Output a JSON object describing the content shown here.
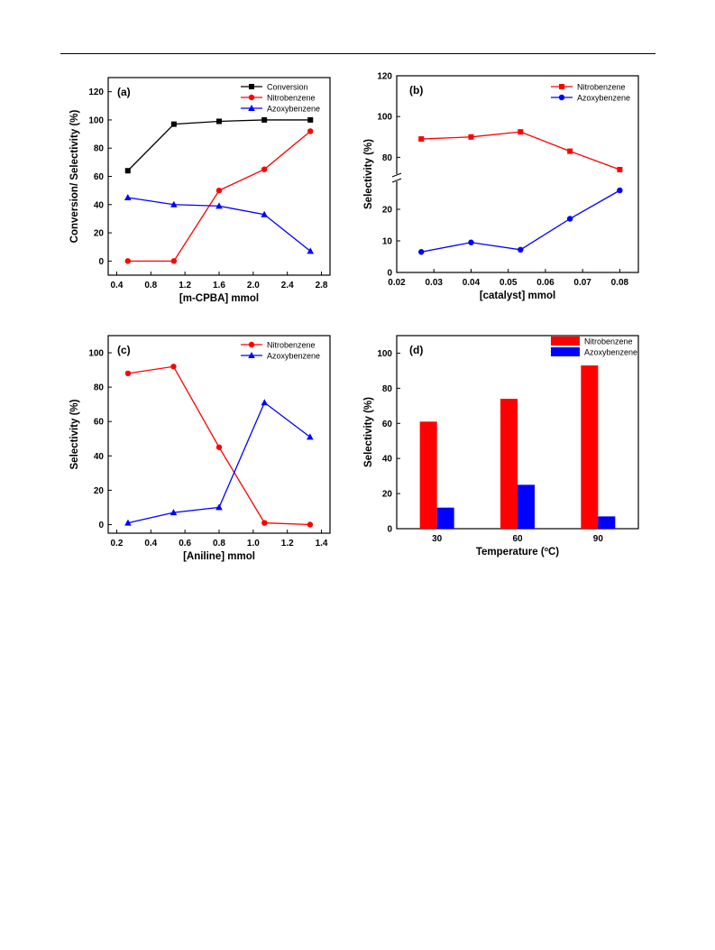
{
  "chart_data": [
    {
      "panel_label": "(a)",
      "type": "line",
      "xlabel": "[m-CPBA] mmol",
      "ylabel": "Conversion/ Selectivity (%)",
      "xlim": [
        0.3,
        2.9
      ],
      "ylim": [
        -10,
        130
      ],
      "xticks": [
        0.4,
        0.8,
        1.2,
        1.6,
        2.0,
        2.4,
        2.8
      ],
      "yticks": [
        0,
        20,
        40,
        60,
        80,
        100,
        120
      ],
      "legend_position": "top-right",
      "series": [
        {
          "name": "Conversion",
          "color": "#000000",
          "marker": "square",
          "x": [
            0.53,
            1.07,
            1.6,
            2.13,
            2.67
          ],
          "y": [
            64,
            97,
            99,
            100,
            100
          ]
        },
        {
          "name": "Nitrobenzene",
          "color": "#ff0000",
          "marker": "circle",
          "x": [
            0.53,
            1.07,
            1.6,
            2.13,
            2.67
          ],
          "y": [
            0,
            0,
            50,
            65,
            92
          ]
        },
        {
          "name": "Azoxybenzene",
          "color": "#0000ff",
          "marker": "triangle",
          "x": [
            0.53,
            1.07,
            1.6,
            2.13,
            2.67
          ],
          "y": [
            45,
            40,
            39,
            33,
            7
          ]
        }
      ]
    },
    {
      "panel_label": "(b)",
      "type": "line",
      "xlabel": "[catalyst] mmol",
      "ylabel": "Selectivity (%)",
      "xlim": [
        0.02,
        0.085
      ],
      "axis_break": true,
      "ylim_lower": [
        0,
        30
      ],
      "ylim_upper": [
        70,
        120
      ],
      "xticks": [
        0.02,
        0.03,
        0.04,
        0.05,
        0.06,
        0.07,
        0.08
      ],
      "yticks": [
        0,
        10,
        20,
        80,
        100,
        120
      ],
      "legend_position": "top-right",
      "series": [
        {
          "name": "Nitrobenzene",
          "color": "#ff0000",
          "marker": "square",
          "x": [
            0.0266,
            0.04,
            0.0533,
            0.0666,
            0.08
          ],
          "y": [
            89,
            90,
            92.5,
            83,
            74
          ]
        },
        {
          "name": "Azoxybenzene",
          "color": "#0000ff",
          "marker": "circle",
          "x": [
            0.0266,
            0.04,
            0.0533,
            0.0666,
            0.08
          ],
          "y": [
            6.5,
            9.5,
            7.2,
            17,
            26
          ]
        }
      ]
    },
    {
      "panel_label": "(c)",
      "type": "line",
      "xlabel": "[Aniline] mmol",
      "ylabel": "Selectivity (%)",
      "xlim": [
        0.15,
        1.45
      ],
      "ylim": [
        -5,
        110
      ],
      "xticks": [
        0.2,
        0.4,
        0.6,
        0.8,
        1.0,
        1.2,
        1.4
      ],
      "yticks": [
        0,
        20,
        40,
        60,
        80,
        100
      ],
      "legend_position": "top-right",
      "series": [
        {
          "name": "Nitrobenzene",
          "color": "#ff0000",
          "marker": "circle",
          "x": [
            0.266,
            0.533,
            0.8,
            1.066,
            1.333
          ],
          "y": [
            88,
            92,
            45,
            1,
            0
          ]
        },
        {
          "name": "Azoxybenzene",
          "color": "#0000ff",
          "marker": "triangle",
          "x": [
            0.266,
            0.533,
            0.8,
            1.066,
            1.333
          ],
          "y": [
            1,
            7,
            10,
            71,
            51
          ]
        }
      ]
    },
    {
      "panel_label": "(d)",
      "type": "bar",
      "xlabel_prefix": "Temperature (",
      "xlabel_sup": "o",
      "xlabel_suffix": "C)",
      "ylabel": "Selectivity (%)",
      "ylim": [
        0,
        110
      ],
      "yticks": [
        0,
        20,
        40,
        60,
        80,
        100
      ],
      "categories": [
        "30",
        "60",
        "90"
      ],
      "legend_position": "top-right",
      "series": [
        {
          "name": "Nitrobenzene",
          "color": "#ff0000",
          "values": [
            61,
            74,
            93
          ]
        },
        {
          "name": "Azoxybenzene",
          "color": "#0000ff",
          "values": [
            12,
            25,
            7
          ]
        }
      ]
    }
  ]
}
